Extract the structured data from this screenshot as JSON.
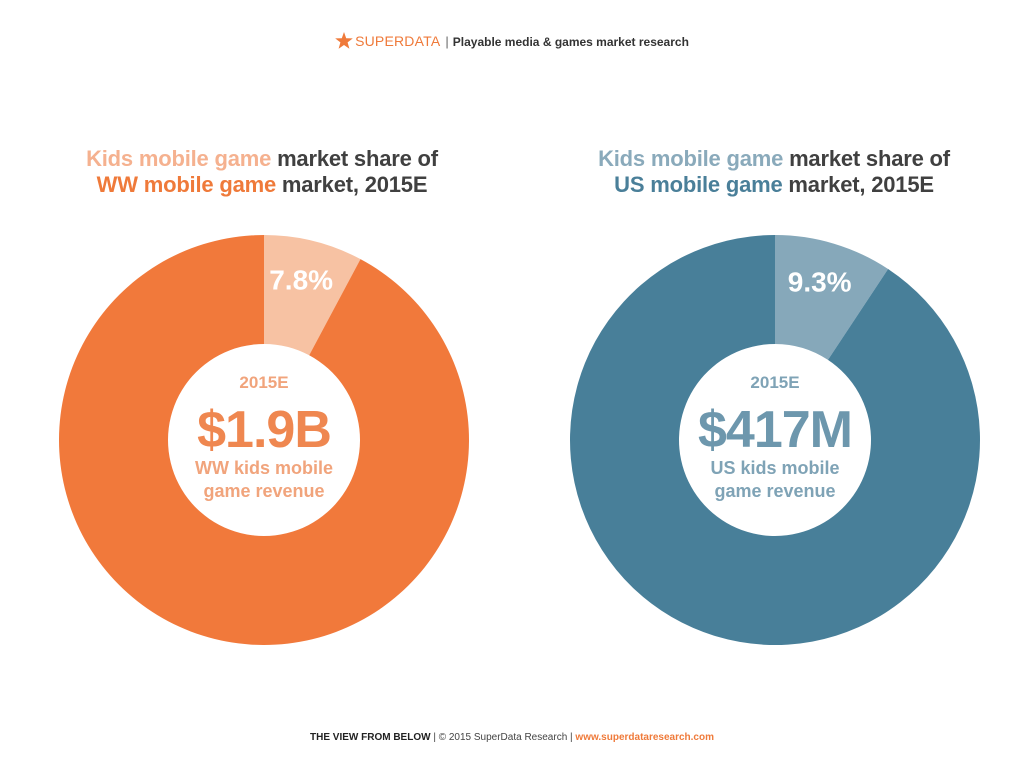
{
  "header": {
    "brand": "SUPERDATA",
    "separator": "|",
    "tagline": "Playable media & games market research",
    "brand_color": "#ef7a3a"
  },
  "chart_data": [
    {
      "type": "pie",
      "style": "donut",
      "title": {
        "line1_highlight": "Kids mobile game",
        "line1_rest": " market share of",
        "line2_highlight": "WW mobile game",
        "line2_rest": " market, 2015E"
      },
      "slices": [
        {
          "label": "7.8%",
          "value": 7.8,
          "color": "#f7c2a3",
          "label_color": "#ffffff"
        },
        {
          "label": "",
          "value": 92.2,
          "color": "#f1793b"
        }
      ],
      "center": {
        "year": "2015E",
        "value": "$1.9B",
        "caption_line1": "WW kids mobile",
        "caption_line2": "game revenue",
        "color": "#f1a47c",
        "value_color": "#ef8750"
      },
      "colors": {
        "title_highlight_line1": "#f5b18f",
        "title_highlight_line2": "#ef7a3a",
        "title_text": "#404040"
      }
    },
    {
      "type": "pie",
      "style": "donut",
      "title": {
        "line1_highlight": "Kids mobile game",
        "line1_rest": " market share of",
        "line2_highlight": "US mobile game",
        "line2_rest": " market, 2015E"
      },
      "slices": [
        {
          "label": "9.3%",
          "value": 9.3,
          "color": "#86a8ba",
          "label_color": "#ffffff"
        },
        {
          "label": "",
          "value": 90.7,
          "color": "#487f99"
        }
      ],
      "center": {
        "year": "2015E",
        "value": "$417M",
        "caption_line1": "US kids mobile",
        "caption_line2": "game revenue",
        "color": "#7fa3b6",
        "value_color": "#6d97ad"
      },
      "colors": {
        "title_highlight_line1": "#8aaabb",
        "title_highlight_line2": "#4a7f99",
        "title_text": "#404040"
      }
    }
  ],
  "footer": {
    "part1": "THE VIEW FROM BELOW",
    "sep1": " | ",
    "part2": "© 2015 SuperData Research",
    "sep2": " | ",
    "part3": "www.superdataresearch.com",
    "link_color": "#ef7a3a"
  }
}
